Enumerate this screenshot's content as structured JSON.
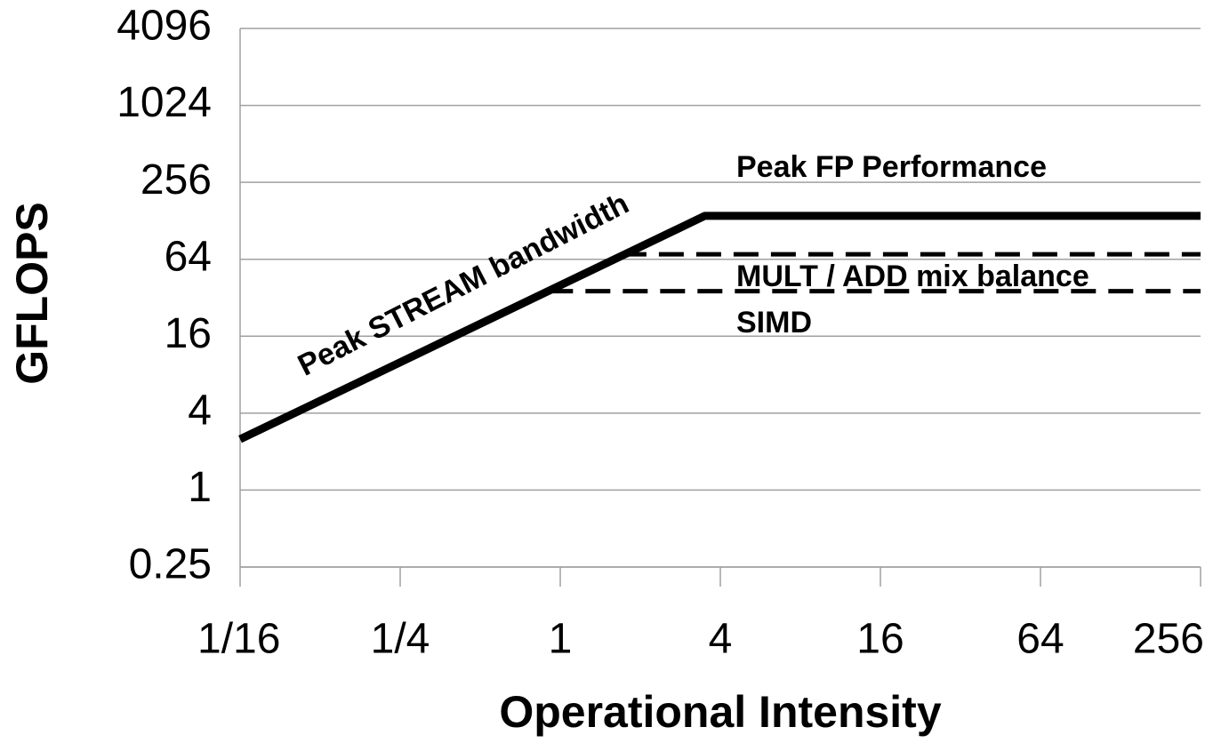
{
  "chart_data": {
    "type": "line",
    "xlabel": "Operational Intensity",
    "ylabel": "GFLOPS",
    "log_x": true,
    "log_y": true,
    "grid": true,
    "xlim": [
      0.0625,
      256
    ],
    "xticks": [
      {
        "value": 0.0625,
        "label": "1/16"
      },
      {
        "value": 0.25,
        "label": "1/4"
      },
      1,
      4,
      16,
      64,
      256
    ],
    "ylim": [
      0.25,
      4096
    ],
    "yticks": [
      0.25,
      1,
      4,
      16,
      64,
      256,
      1024,
      4096
    ],
    "series": [
      {
        "color": "#000000",
        "style": "solid",
        "x": [
          0.0625,
          3.5,
          256
        ],
        "values": [
          2.5,
          140,
          140
        ]
      },
      {
        "color": "#000000",
        "style": "dashed",
        "x": [
          1.7,
          256
        ],
        "values": [
          70,
          70
        ]
      },
      {
        "color": "#000000",
        "style": "dashed",
        "x": [
          0.9,
          256
        ],
        "values": [
          36,
          36
        ]
      }
    ],
    "annotations": [
      "Peak FP Performance",
      "MULT / ADD mix balance",
      "SIMD",
      "Peak STREAM bandwidth"
    ]
  }
}
